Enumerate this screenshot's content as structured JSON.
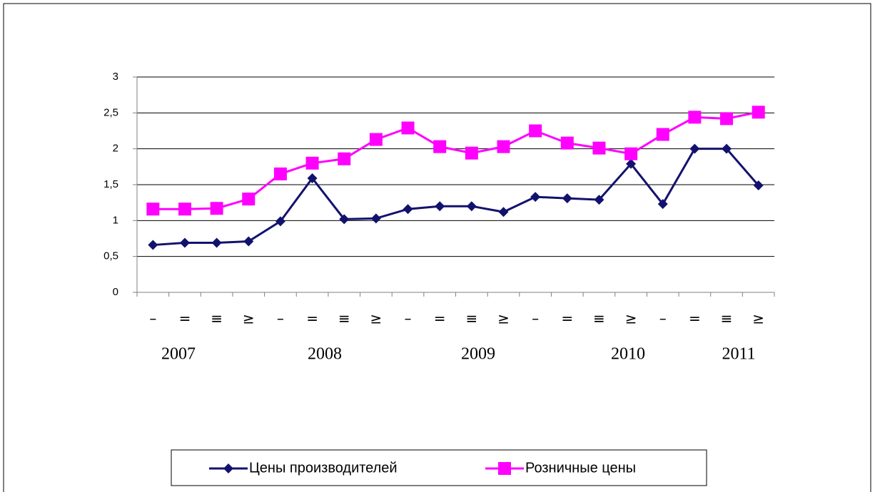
{
  "chart_data": {
    "type": "line",
    "categories": [
      "–",
      "=",
      "≡",
      "≥",
      "–",
      "=",
      "≡",
      "≥",
      "–",
      "=",
      "≡",
      "≥",
      "–",
      "=",
      "≡",
      "≥",
      "–",
      "=",
      "≡",
      "≥"
    ],
    "year_labels": [
      "2007",
      "2008",
      "2009",
      "2010",
      "2011"
    ],
    "series": [
      {
        "name": "Цены производителей",
        "color": "#12126e",
        "marker": "diamond",
        "values": [
          0.66,
          0.69,
          0.69,
          0.71,
          0.99,
          1.59,
          1.02,
          1.03,
          1.16,
          1.2,
          1.2,
          1.12,
          1.33,
          1.31,
          1.29,
          1.79,
          1.23,
          2.0,
          2.0,
          1.49
        ]
      },
      {
        "name": "Розничные цены",
        "color": "#ff00ff",
        "marker": "square",
        "values": [
          1.16,
          1.16,
          1.17,
          1.3,
          1.65,
          1.8,
          1.86,
          2.13,
          2.29,
          2.03,
          1.94,
          2.03,
          2.25,
          2.08,
          2.01,
          1.93,
          2.2,
          2.44,
          2.42,
          2.51
        ]
      }
    ],
    "ylim": [
      0,
      3
    ],
    "yticks": [
      0,
      {
        "value": 0.5,
        "label": "0,5"
      },
      1,
      {
        "value": 1.5,
        "label": "1,5"
      },
      2,
      {
        "value": 2.5,
        "label": "2,5"
      },
      3
    ],
    "grid": true,
    "legend": "bottom"
  }
}
